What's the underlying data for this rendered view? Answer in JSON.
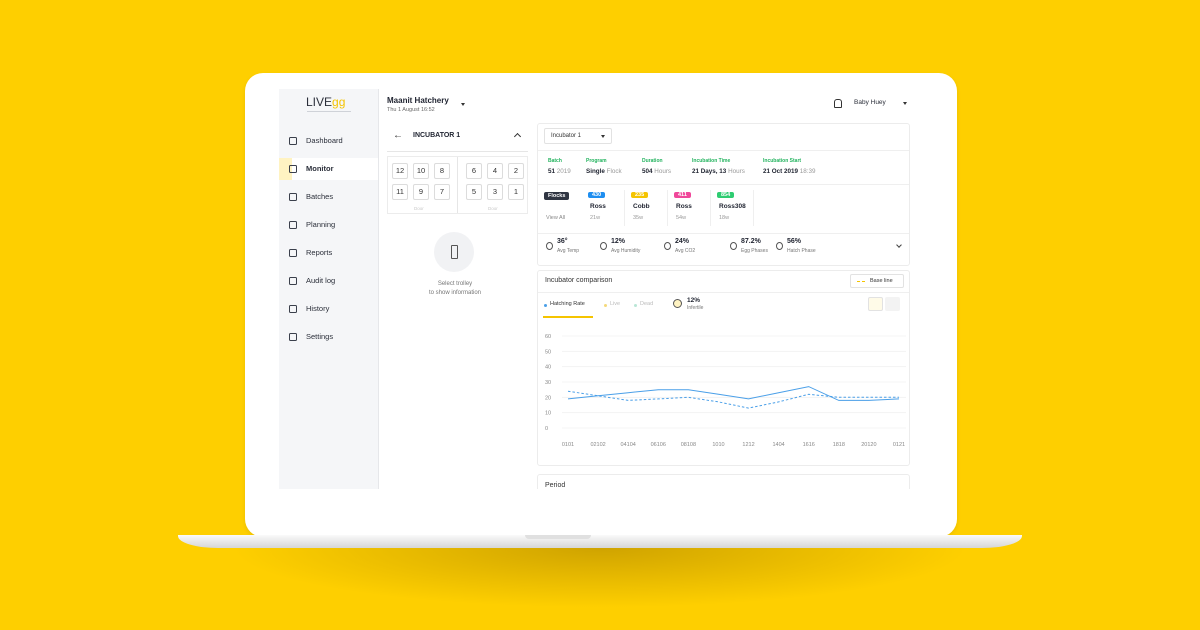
{
  "sidebar": {
    "logo": "LIVE",
    "logo_accent": "gg",
    "menu": [
      "Dashboard",
      "Monitor",
      "Batches",
      "Planning",
      "Reports",
      "Audit log",
      "History",
      "Settings"
    ],
    "active": 1
  },
  "header": {
    "hatchery": "Maanit Hatchery",
    "datetime": "Thu 1 August 16:52",
    "user": "Baby Huey"
  },
  "incubator_panel": {
    "title": "INCUBATOR 1",
    "left_trolleys": [
      [
        "12",
        "10",
        "8"
      ],
      [
        "11",
        "9",
        "7"
      ]
    ],
    "right_trolleys": [
      [
        "6",
        "4",
        "2"
      ],
      [
        "5",
        "3",
        "1"
      ]
    ],
    "door_label": "Door",
    "hint": [
      "Select trolley",
      "to show information"
    ]
  },
  "details": {
    "selector": "Incubator 1",
    "stats": [
      {
        "label": "Batch",
        "value": "51",
        "extra": "2019"
      },
      {
        "label": "Program",
        "value": "Single",
        "extra": "Flock"
      },
      {
        "label": "Duration",
        "value": "504",
        "extra": "Hours"
      },
      {
        "label": "Incubation Time",
        "value": "21 Days, 13",
        "extra": "Hours"
      },
      {
        "label": "Incubation Start",
        "value": "21 Oct 2019",
        "extra": "18:39"
      }
    ],
    "flocks_label": "Flocks",
    "view_all": "View All",
    "flocks": [
      {
        "count": "430",
        "color": "#1e8ef0",
        "breed": "Ross",
        "age": "21w"
      },
      {
        "count": "235",
        "color": "#f5c400",
        "breed": "Cobb",
        "age": "35w"
      },
      {
        "count": "411",
        "color": "#f0479a",
        "breed": "Ross",
        "age": "54w"
      },
      {
        "count": "854",
        "color": "#2ecc71",
        "breed": "Ross308",
        "age": "18w"
      }
    ],
    "sensors": [
      {
        "value": "36°",
        "label": "Avg Temp"
      },
      {
        "value": "12%",
        "label": "Avg Humidity"
      },
      {
        "value": "24%",
        "label": "Avg CO2"
      },
      {
        "value": "87.2%",
        "label": "Egg Phases"
      },
      {
        "value": "56%",
        "label": "Hatch Phase"
      }
    ]
  },
  "chart_panel": {
    "other_tabs": [
      "Live",
      "Dead"
    ],
    "infertile_value": "12%",
    "infertile_label": "Infertile",
    "period": "Period"
  },
  "chart_data": {
    "type": "line",
    "title": "Incubator comparison",
    "categories": [
      "0101",
      "02102",
      "04104",
      "06106",
      "08108",
      "1010",
      "1212",
      "1404",
      "1616",
      "1818",
      "20120",
      "0121"
    ],
    "series": [
      {
        "name": "Hatching Rate",
        "color": "#4a9fe8",
        "dashed": false,
        "values": [
          19,
          21,
          23,
          25,
          25,
          22,
          19,
          23,
          27,
          18,
          18,
          19
        ]
      },
      {
        "name": "Base line",
        "color": "#4a9fe8",
        "dashed": true,
        "values": [
          24,
          21,
          18,
          19,
          20,
          17,
          13,
          17,
          22,
          20,
          20,
          20
        ]
      }
    ],
    "ylim": [
      0,
      60
    ],
    "yticks": [
      0,
      10,
      20,
      30,
      40,
      50,
      60
    ],
    "grid": true
  }
}
